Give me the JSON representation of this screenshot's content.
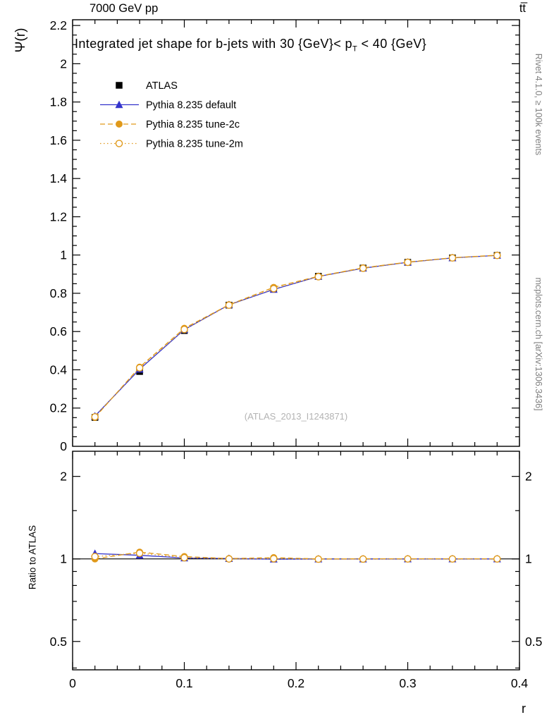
{
  "header": {
    "left": "7000 GeV pp",
    "right": "tt̅"
  },
  "side_notes": {
    "top_right": "Rivet 4.1.0, ≥ 100k events",
    "bottom_right": "mcplots.cern.ch [arXiv:1306.3436]"
  },
  "watermark": "(ATLAS_2013_I1243871)",
  "chart_data": {
    "type": "line",
    "title_parts": {
      "pre": "Integrated jet shape for b-jets with 30 {GeV}< p",
      "sub": "T",
      "post": " < 40 {GeV}"
    },
    "xlabel": "r",
    "ylabel": "Ψ(r)",
    "ratio_ylabel": "Ratio to ATLAS",
    "legend_position": "top-left",
    "grid": false,
    "x": [
      0.02,
      0.06,
      0.1,
      0.14,
      0.18,
      0.22,
      0.26,
      0.3,
      0.34,
      0.38
    ],
    "series": [
      {
        "name": "ATLAS",
        "color": "#000000",
        "marker": "square",
        "line": "none",
        "values": [
          0.151,
          0.391,
          0.605,
          0.738,
          0.822,
          0.889,
          0.932,
          0.962,
          0.985,
          0.998
        ]
      },
      {
        "name": "Pythia 8.235 default",
        "color": "#3333cc",
        "marker": "triangle",
        "line": "solid",
        "values": [
          0.158,
          0.403,
          0.61,
          0.74,
          0.82,
          0.888,
          0.931,
          0.962,
          0.985,
          0.998
        ],
        "ratio": [
          1.046,
          1.031,
          1.008,
          1.003,
          0.998,
          0.999,
          0.999,
          1.0,
          1.0,
          1.0
        ]
      },
      {
        "name": "Pythia 8.235 tune-2c",
        "color": "#e0991a",
        "marker": "circle",
        "line": "dashed",
        "values": [
          0.151,
          0.414,
          0.617,
          0.74,
          0.831,
          0.889,
          0.933,
          0.963,
          0.986,
          0.999
        ],
        "ratio": [
          1.0,
          1.059,
          1.02,
          1.003,
          1.011,
          1.0,
          1.001,
          1.001,
          1.001,
          1.001
        ]
      },
      {
        "name": "Pythia 8.235 tune-2m",
        "color": "#e0991a",
        "marker": "circle-open",
        "line": "dotted",
        "values": [
          0.154,
          0.41,
          0.611,
          0.738,
          0.824,
          0.887,
          0.931,
          0.962,
          0.985,
          0.998
        ],
        "ratio": [
          1.02,
          1.049,
          1.01,
          1.0,
          1.002,
          0.998,
          0.999,
          1.0,
          1.0,
          1.0
        ]
      }
    ],
    "axes": {
      "x": {
        "min": 0,
        "max": 0.4,
        "ticks": [
          "0",
          "0.1",
          "0.2",
          "0.3",
          "0.4"
        ],
        "minor_step": 0.02
      },
      "main_y": {
        "min": 0,
        "max": 2.23,
        "ticks": [
          "0",
          "0.2",
          "0.4",
          "0.6",
          "0.8",
          "1",
          "1.2",
          "1.4",
          "1.6",
          "1.8",
          "2",
          "2.2"
        ],
        "minor_step": 0.05
      },
      "ratio_y": {
        "min": 0.394,
        "max": 2.47,
        "scale": "log",
        "ticks": [
          "0.5",
          "1",
          "2"
        ],
        "minor_ticks": [
          0.4,
          0.6,
          0.7,
          0.8,
          0.9,
          1.5
        ]
      }
    },
    "ratio_reference": 1
  }
}
